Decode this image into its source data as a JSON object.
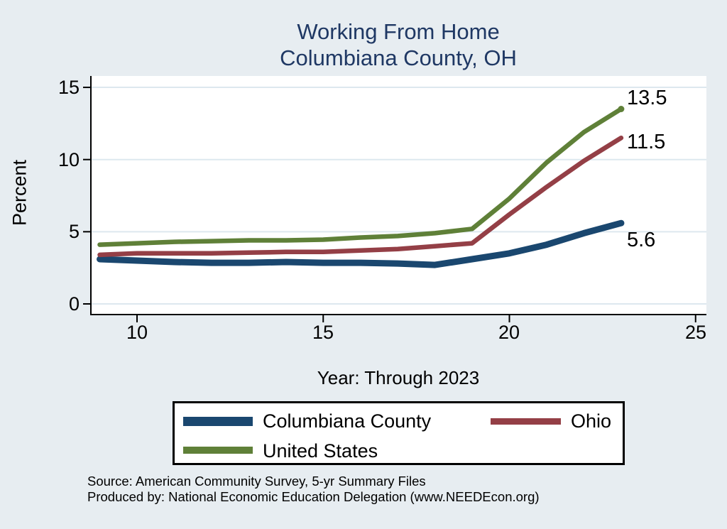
{
  "title": {
    "line1": "Working From Home",
    "line2": "Columbiana County, OH"
  },
  "axes": {
    "y_label": "Percent",
    "x_label": "Year: Through 2023"
  },
  "footer": {
    "source": "Source: American Community Survey, 5-yr Summary Files",
    "produced_by": "Produced by: National Economic Education Delegation (www.NEEDEcon.org)"
  },
  "colors": {
    "background": "#e7edf1",
    "plot_background": "#ffffff",
    "gridline": "#dde8ef",
    "title_text": "#1f3864",
    "axis_text": "#000000",
    "columbiana_county": "#1a476f",
    "ohio": "#943f46",
    "united_states": "#5f8038"
  },
  "chart_data": {
    "type": "line",
    "title": "Working From Home Columbiana County, OH",
    "xlabel": "Year: Through 2023",
    "ylabel": "Percent",
    "x": [
      9,
      10,
      11,
      12,
      13,
      14,
      15,
      16,
      17,
      18,
      19,
      20,
      21,
      22,
      23
    ],
    "x_ticks": [
      "10",
      "15",
      "20",
      "25"
    ],
    "x_tick_values": [
      10,
      15,
      20,
      25
    ],
    "y_ticks": [
      "0",
      "5",
      "10",
      "15"
    ],
    "y_tick_values": [
      0,
      5,
      10,
      15
    ],
    "xlim": [
      8.7,
      25.3
    ],
    "ylim": [
      0,
      15
    ],
    "grid": true,
    "legend_position": "bottom",
    "series": [
      {
        "name": "Columbiana County",
        "color": "#1a476f",
        "width": 9,
        "values": [
          3.1,
          3.0,
          2.9,
          2.85,
          2.85,
          2.9,
          2.85,
          2.85,
          2.8,
          2.7,
          3.1,
          3.5,
          4.1,
          4.9,
          5.6
        ],
        "end_label": "5.6",
        "end_marker": false
      },
      {
        "name": "Ohio",
        "color": "#943f46",
        "width": 6.5,
        "values": [
          3.4,
          3.5,
          3.5,
          3.5,
          3.55,
          3.6,
          3.6,
          3.7,
          3.8,
          4.0,
          4.2,
          6.2,
          8.1,
          9.9,
          11.5
        ],
        "end_label": "11.5",
        "end_marker": false
      },
      {
        "name": "United States",
        "color": "#5f8038",
        "width": 6.5,
        "values": [
          4.1,
          4.2,
          4.3,
          4.35,
          4.4,
          4.4,
          4.45,
          4.6,
          4.7,
          4.9,
          5.2,
          7.3,
          9.8,
          11.9,
          13.5
        ],
        "end_label": "13.5",
        "end_marker": true
      }
    ]
  }
}
